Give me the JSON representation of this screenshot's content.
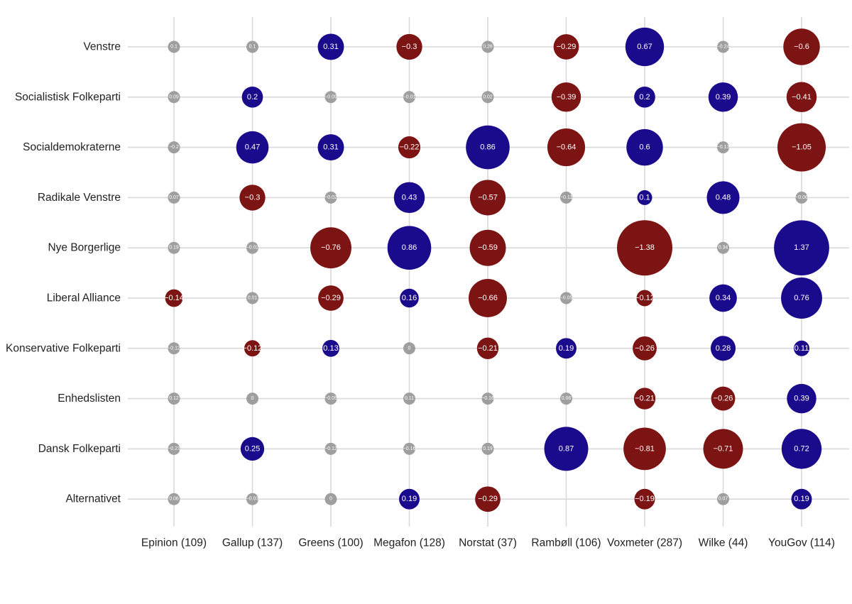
{
  "chart_data": {
    "type": "bubble-matrix",
    "title": "",
    "xlabel": "",
    "ylabel": "",
    "grid": true,
    "pollsters": [
      "Epinion (109)",
      "Gallup (137)",
      "Greens (100)",
      "Megafon (128)",
      "Norstat (37)",
      "Rambøll (106)",
      "Voxmeter (287)",
      "Wilke (44)",
      "YouGov (114)"
    ],
    "parties": [
      "Venstre",
      "Socialistisk Folkeparti",
      "Socialdemokraterne",
      "Radikale Venstre",
      "Nye Borgerlige",
      "Liberal Alliance",
      "Konservative Folkeparti",
      "Enhedslisten",
      "Dansk Folkeparti",
      "Alternativet"
    ],
    "values": [
      [
        0.1,
        0.1,
        0.31,
        -0.3,
        0.26,
        -0.29,
        0.67,
        -0.24,
        -0.6
      ],
      [
        0.09,
        0.2,
        -0.09,
        -0.01,
        0.02,
        -0.39,
        0.2,
        0.39,
        -0.41
      ],
      [
        -0.2,
        0.47,
        0.31,
        -0.22,
        0.86,
        -0.64,
        0.6,
        -0.13,
        -1.05
      ],
      [
        0.07,
        -0.3,
        -0.02,
        0.43,
        -0.57,
        -0.11,
        0.1,
        0.48,
        -0.06
      ],
      [
        0.19,
        -0.02,
        -0.76,
        0.86,
        -0.59,
        null,
        -1.38,
        0.34,
        1.37
      ],
      [
        -0.14,
        0.01,
        -0.29,
        0.16,
        -0.66,
        -0.05,
        -0.12,
        0.34,
        0.76
      ],
      [
        -0.12,
        -0.12,
        0.13,
        0,
        -0.21,
        0.19,
        -0.26,
        0.28,
        0.11
      ],
      [
        0.12,
        0,
        -0.05,
        0.11,
        -0.16,
        0.08,
        -0.21,
        -0.26,
        0.39
      ],
      [
        -0.21,
        0.25,
        -0.12,
        -0.16,
        0.19,
        0.87,
        -0.81,
        -0.71,
        0.72
      ],
      [
        0.06,
        -0.03,
        0,
        0.19,
        -0.29,
        null,
        -0.19,
        0.07,
        0.19
      ]
    ],
    "significant": [
      [
        false,
        false,
        true,
        true,
        false,
        true,
        true,
        false,
        true
      ],
      [
        false,
        true,
        false,
        false,
        false,
        true,
        true,
        true,
        true
      ],
      [
        false,
        true,
        true,
        true,
        true,
        true,
        true,
        false,
        true
      ],
      [
        false,
        true,
        false,
        true,
        true,
        false,
        true,
        true,
        false
      ],
      [
        false,
        false,
        true,
        true,
        true,
        false,
        true,
        false,
        true
      ],
      [
        true,
        false,
        true,
        true,
        true,
        false,
        true,
        true,
        true
      ],
      [
        false,
        true,
        true,
        false,
        true,
        true,
        true,
        true,
        true
      ],
      [
        false,
        false,
        false,
        false,
        false,
        false,
        true,
        true,
        true
      ],
      [
        false,
        true,
        false,
        false,
        false,
        true,
        true,
        true,
        true
      ],
      [
        false,
        false,
        false,
        true,
        true,
        false,
        true,
        false,
        true
      ]
    ],
    "colors": {
      "positive": "#1a0a8c",
      "negative": "#7d1414",
      "insignificant": "#9a9a9a",
      "grid": "#d9d9d9",
      "label_text": "#ffffff",
      "axis_text": "#222222"
    }
  }
}
